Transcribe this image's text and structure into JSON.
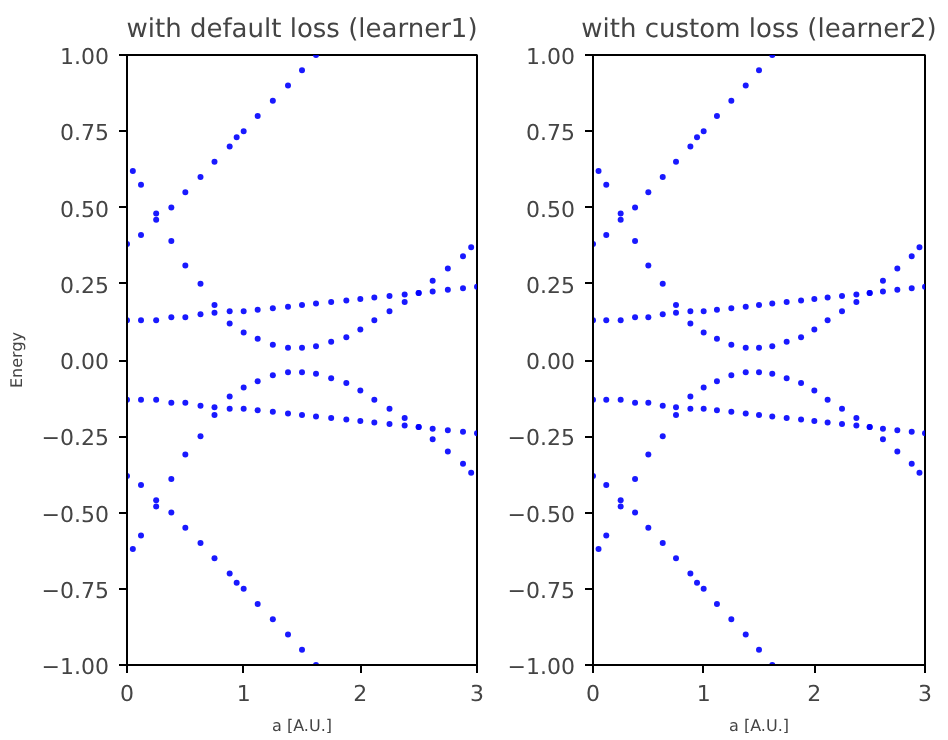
{
  "chart_data": [
    {
      "type": "scatter",
      "title": "with default loss (learner1)",
      "xlabel": "a [A.U.]",
      "ylabel": "Energy",
      "color": "#0000ff",
      "marker": "circle",
      "grid": false,
      "xlim": [
        0,
        3
      ],
      "ylim": [
        -1,
        1
      ],
      "xticks": [
        0,
        1,
        2,
        3
      ],
      "yticks": [
        {
          "value": -1,
          "label": "−1.00"
        },
        {
          "value": -0.75,
          "label": "−0.75"
        },
        {
          "value": -0.5,
          "label": "−0.50"
        },
        {
          "value": -0.25,
          "label": "−0.25"
        },
        {
          "value": 0,
          "label": "0.00"
        },
        {
          "value": 0.25,
          "label": "0.25"
        },
        {
          "value": 0.5,
          "label": "0.50"
        },
        {
          "value": 0.75,
          "label": "0.75"
        },
        {
          "value": 1,
          "label": "1.00"
        }
      ],
      "x": [
        0.05,
        0.12,
        0.25,
        0,
        0.12,
        0.25,
        0.38,
        0.5,
        0.63,
        0.75,
        0.88,
        1.0,
        1.12,
        1.25,
        1.38,
        1.5,
        1.62,
        1.75,
        1.88,
        2.0,
        2.12,
        2.25,
        2.38,
        2.5,
        2.62,
        2.75,
        2.88,
        2.95,
        0.38,
        0.5,
        0.63,
        0.75,
        0.88,
        0.94,
        1.0,
        1.12,
        1.25,
        1.38,
        1.5,
        1.62,
        0,
        0.12,
        0.25,
        0.38,
        0.5,
        0.63,
        0.75,
        0.88,
        1.0,
        1.12,
        1.25,
        1.38,
        1.5,
        1.62,
        1.75,
        1.88,
        2.0,
        2.12,
        2.25,
        2.38,
        2.5,
        2.62,
        2.75,
        2.88,
        3.0,
        0.05,
        0.12,
        0.25,
        0,
        0.12,
        0.25,
        0.38,
        0.5,
        0.63,
        0.75,
        0.88,
        1.0,
        1.12,
        1.25,
        1.38,
        1.5,
        1.62,
        1.75,
        1.88,
        2.0,
        2.12,
        2.25,
        2.38,
        2.5,
        2.62,
        2.75,
        2.88,
        2.95,
        0.38,
        0.5,
        0.63,
        0.75,
        0.88,
        0.94,
        1.0,
        1.12,
        1.25,
        1.38,
        1.5,
        1.62,
        0,
        0.12,
        0.25,
        0.38,
        0.5,
        0.63,
        0.75,
        0.88,
        1.0,
        1.12,
        1.25,
        1.38,
        1.5,
        1.62,
        1.75,
        1.88,
        2.0,
        2.12,
        2.25,
        2.38,
        2.5,
        2.62,
        2.75,
        2.88,
        3.0
      ],
      "values": [
        0.62,
        0.575,
        0.48,
        0.38,
        0.41,
        0.46,
        0.39,
        0.31,
        0.25,
        0.18,
        0.12,
        0.09,
        0.07,
        0.05,
        0.04,
        0.04,
        0.045,
        0.06,
        0.075,
        0.1,
        0.13,
        0.16,
        0.19,
        0.22,
        0.26,
        0.3,
        0.34,
        0.37,
        0.5,
        0.55,
        0.6,
        0.65,
        0.7,
        0.73,
        0.75,
        0.8,
        0.85,
        0.9,
        0.95,
        1.0,
        0.13,
        0.13,
        0.13,
        0.14,
        0.14,
        0.15,
        0.155,
        0.16,
        0.16,
        0.165,
        0.17,
        0.175,
        0.18,
        0.185,
        0.19,
        0.195,
        0.2,
        0.205,
        0.21,
        0.215,
        0.22,
        0.225,
        0.23,
        0.235,
        0.24,
        -0.62,
        -0.575,
        -0.48,
        -0.38,
        -0.41,
        -0.46,
        -0.39,
        -0.31,
        -0.25,
        -0.18,
        -0.12,
        -0.09,
        -0.07,
        -0.05,
        -0.04,
        -0.04,
        -0.045,
        -0.06,
        -0.075,
        -0.1,
        -0.13,
        -0.16,
        -0.19,
        -0.22,
        -0.26,
        -0.3,
        -0.34,
        -0.37,
        -0.5,
        -0.55,
        -0.6,
        -0.65,
        -0.7,
        -0.73,
        -0.75,
        -0.8,
        -0.85,
        -0.9,
        -0.95,
        -1.0,
        -0.13,
        -0.13,
        -0.13,
        -0.14,
        -0.14,
        -0.15,
        -0.155,
        -0.16,
        -0.16,
        -0.165,
        -0.17,
        -0.175,
        -0.18,
        -0.185,
        -0.19,
        -0.195,
        -0.2,
        -0.205,
        -0.21,
        -0.215,
        -0.22,
        -0.225,
        -0.23,
        -0.235,
        -0.24
      ]
    },
    {
      "type": "scatter",
      "title": "with custom loss (learner2)",
      "xlabel": "a [A.U.]",
      "color": "#0000ff",
      "marker": "circle",
      "grid": false,
      "xlim": [
        0,
        3
      ],
      "ylim": [
        -1,
        1
      ],
      "xticks": [
        0,
        1,
        2,
        3
      ],
      "yticks": [
        {
          "value": -1,
          "label": "−1.00"
        },
        {
          "value": -0.75,
          "label": "−0.75"
        },
        {
          "value": -0.5,
          "label": "−0.50"
        },
        {
          "value": -0.25,
          "label": "−0.25"
        },
        {
          "value": 0,
          "label": "0.00"
        },
        {
          "value": 0.25,
          "label": "0.25"
        },
        {
          "value": 0.5,
          "label": "0.50"
        },
        {
          "value": 0.75,
          "label": "0.75"
        },
        {
          "value": 1,
          "label": "1.00"
        }
      ],
      "x": [
        0.05,
        0.12,
        0.25,
        0,
        0.12,
        0.25,
        0.38,
        0.5,
        0.63,
        0.75,
        0.88,
        1.0,
        1.12,
        1.25,
        1.38,
        1.5,
        1.62,
        1.75,
        1.88,
        2.0,
        2.12,
        2.25,
        2.38,
        2.5,
        2.62,
        2.75,
        2.88,
        2.95,
        0.38,
        0.5,
        0.63,
        0.75,
        0.88,
        0.94,
        1.0,
        1.12,
        1.25,
        1.38,
        1.5,
        1.62,
        0,
        0.12,
        0.25,
        0.38,
        0.5,
        0.63,
        0.75,
        0.88,
        1.0,
        1.12,
        1.25,
        1.38,
        1.5,
        1.62,
        1.75,
        1.88,
        2.0,
        2.12,
        2.25,
        2.38,
        2.5,
        2.62,
        2.75,
        2.88,
        3.0,
        0.05,
        0.12,
        0.25,
        0,
        0.12,
        0.25,
        0.38,
        0.5,
        0.63,
        0.75,
        0.88,
        1.0,
        1.12,
        1.25,
        1.38,
        1.5,
        1.62,
        1.75,
        1.88,
        2.0,
        2.12,
        2.25,
        2.38,
        2.5,
        2.62,
        2.75,
        2.88,
        2.95,
        0.38,
        0.5,
        0.63,
        0.75,
        0.88,
        0.94,
        1.0,
        1.12,
        1.25,
        1.38,
        1.5,
        1.62,
        0,
        0.12,
        0.25,
        0.38,
        0.5,
        0.63,
        0.75,
        0.88,
        1.0,
        1.12,
        1.25,
        1.38,
        1.5,
        1.62,
        1.75,
        1.88,
        2.0,
        2.12,
        2.25,
        2.38,
        2.5,
        2.62,
        2.75,
        2.88,
        3.0
      ],
      "values": [
        0.62,
        0.575,
        0.48,
        0.38,
        0.41,
        0.46,
        0.39,
        0.31,
        0.25,
        0.18,
        0.12,
        0.09,
        0.07,
        0.05,
        0.04,
        0.04,
        0.045,
        0.06,
        0.075,
        0.1,
        0.13,
        0.16,
        0.19,
        0.22,
        0.26,
        0.3,
        0.34,
        0.37,
        0.5,
        0.55,
        0.6,
        0.65,
        0.7,
        0.73,
        0.75,
        0.8,
        0.85,
        0.9,
        0.95,
        1.0,
        0.13,
        0.13,
        0.13,
        0.14,
        0.14,
        0.15,
        0.155,
        0.16,
        0.16,
        0.165,
        0.17,
        0.175,
        0.18,
        0.185,
        0.19,
        0.195,
        0.2,
        0.205,
        0.21,
        0.215,
        0.22,
        0.225,
        0.23,
        0.235,
        0.24,
        -0.62,
        -0.575,
        -0.48,
        -0.38,
        -0.41,
        -0.46,
        -0.39,
        -0.31,
        -0.25,
        -0.18,
        -0.12,
        -0.09,
        -0.07,
        -0.05,
        -0.04,
        -0.04,
        -0.045,
        -0.06,
        -0.075,
        -0.1,
        -0.13,
        -0.16,
        -0.19,
        -0.22,
        -0.26,
        -0.3,
        -0.34,
        -0.37,
        -0.5,
        -0.55,
        -0.6,
        -0.65,
        -0.7,
        -0.73,
        -0.75,
        -0.8,
        -0.85,
        -0.9,
        -0.95,
        -1.0,
        -0.13,
        -0.13,
        -0.13,
        -0.14,
        -0.14,
        -0.15,
        -0.155,
        -0.16,
        -0.16,
        -0.165,
        -0.17,
        -0.175,
        -0.18,
        -0.185,
        -0.19,
        -0.195,
        -0.2,
        -0.205,
        -0.21,
        -0.215,
        -0.22,
        -0.225,
        -0.23,
        -0.235,
        -0.24
      ]
    }
  ]
}
